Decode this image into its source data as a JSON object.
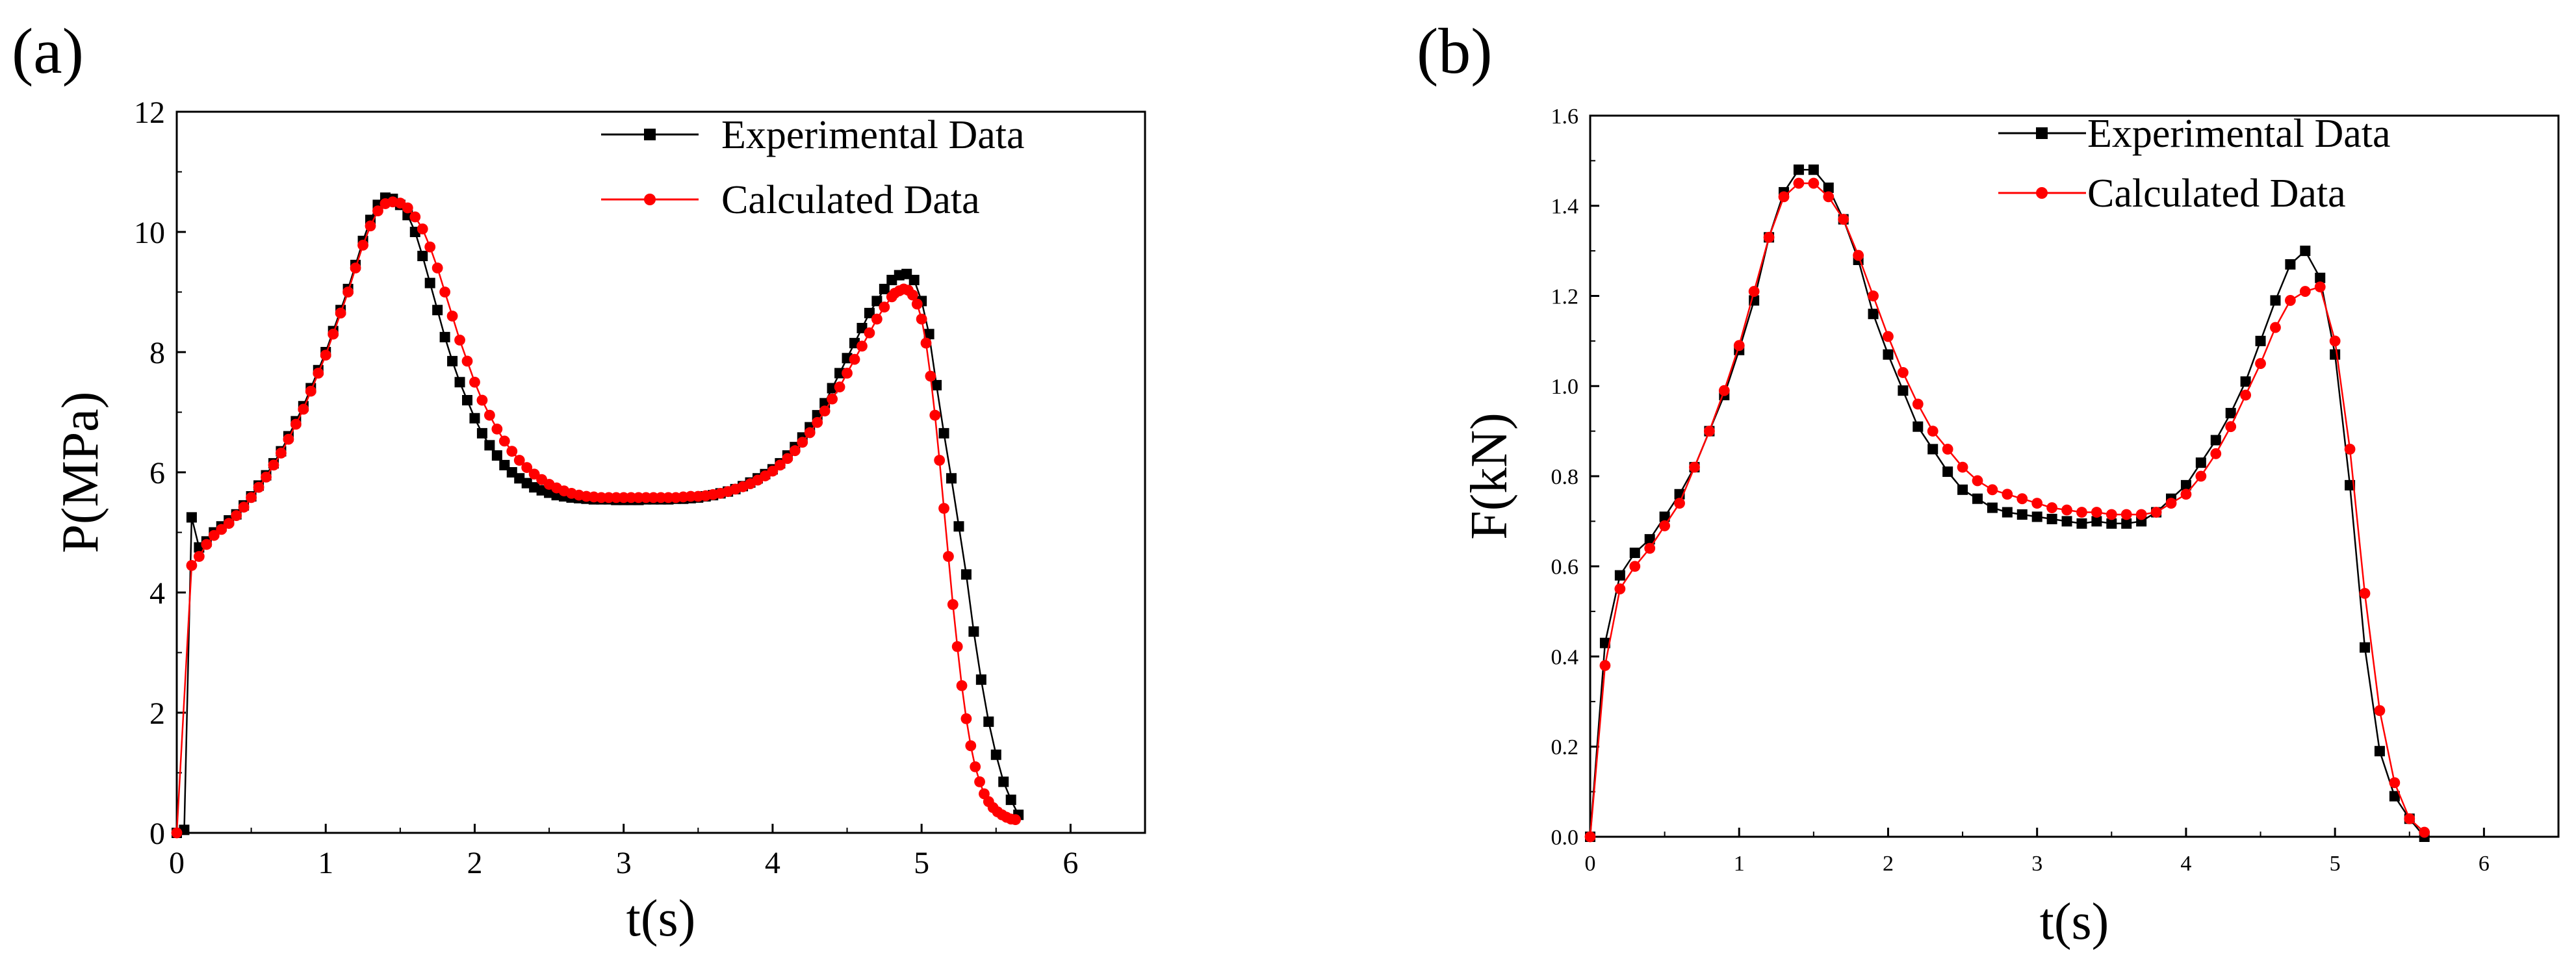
{
  "panels": [
    {
      "label": "(a)",
      "legend": [
        "Experimental Data",
        "Calculated Data"
      ]
    },
    {
      "label": "(b)",
      "legend": [
        "Experimental Data",
        "Calculated Data"
      ]
    }
  ],
  "colors": {
    "experimental": "#000000",
    "calculated": "#ff0000",
    "axis": "#000000",
    "background": "#ffffff"
  },
  "chart_data": [
    {
      "type": "line",
      "panel": "(a)",
      "title": "",
      "xlabel": "t(s)",
      "ylabel": "P(MPa)",
      "xlim": [
        0,
        6.5
      ],
      "ylim": [
        0,
        12
      ],
      "xticks": [
        0,
        1,
        2,
        3,
        4,
        5,
        6
      ],
      "yticks": [
        0,
        2,
        4,
        6,
        8,
        10,
        12
      ],
      "ytick_labels": [
        "0",
        "2",
        "4",
        "6",
        "8",
        "10",
        "12"
      ],
      "legend_position": "top-right",
      "series": [
        {
          "name": "Experimental Data",
          "marker": "square",
          "x": [
            0,
            0.05,
            0.1,
            0.15,
            0.2,
            0.25,
            0.3,
            0.35,
            0.4,
            0.45,
            0.5,
            0.55,
            0.6,
            0.65,
            0.7,
            0.75,
            0.8,
            0.85,
            0.9,
            0.95,
            1.0,
            1.05,
            1.1,
            1.15,
            1.2,
            1.25,
            1.3,
            1.35,
            1.4,
            1.45,
            1.5,
            1.55,
            1.6,
            1.65,
            1.7,
            1.75,
            1.8,
            1.85,
            1.9,
            1.95,
            2.0,
            2.05,
            2.1,
            2.15,
            2.2,
            2.25,
            2.3,
            2.35,
            2.4,
            2.45,
            2.5,
            2.55,
            2.6,
            2.65,
            2.7,
            2.75,
            2.8,
            2.85,
            2.9,
            2.95,
            3.0,
            3.05,
            3.1,
            3.15,
            3.2,
            3.25,
            3.3,
            3.35,
            3.4,
            3.45,
            3.5,
            3.55,
            3.6,
            3.65,
            3.7,
            3.75,
            3.8,
            3.85,
            3.9,
            3.95,
            4.0,
            4.05,
            4.1,
            4.15,
            4.2,
            4.25,
            4.3,
            4.35,
            4.4,
            4.45,
            4.5,
            4.55,
            4.6,
            4.65,
            4.7,
            4.75,
            4.8,
            4.85,
            4.9,
            4.95,
            5.0,
            5.05,
            5.1,
            5.15,
            5.2,
            5.25,
            5.3,
            5.35,
            5.4,
            5.45,
            5.5,
            5.55,
            5.6,
            5.65
          ],
          "y": [
            0.0,
            0.05,
            5.25,
            4.75,
            4.85,
            5.0,
            5.1,
            5.2,
            5.3,
            5.45,
            5.6,
            5.78,
            5.95,
            6.15,
            6.35,
            6.6,
            6.85,
            7.1,
            7.4,
            7.7,
            8.0,
            8.35,
            8.7,
            9.05,
            9.45,
            9.85,
            10.2,
            10.45,
            10.57,
            10.55,
            10.45,
            10.28,
            10.0,
            9.6,
            9.15,
            8.7,
            8.25,
            7.85,
            7.5,
            7.2,
            6.9,
            6.65,
            6.45,
            6.28,
            6.12,
            6.0,
            5.9,
            5.82,
            5.75,
            5.7,
            5.66,
            5.62,
            5.6,
            5.58,
            5.57,
            5.56,
            5.55,
            5.55,
            5.55,
            5.54,
            5.54,
            5.54,
            5.54,
            5.55,
            5.55,
            5.55,
            5.55,
            5.56,
            5.56,
            5.57,
            5.58,
            5.6,
            5.62,
            5.65,
            5.68,
            5.72,
            5.77,
            5.83,
            5.9,
            5.97,
            6.05,
            6.15,
            6.28,
            6.42,
            6.58,
            6.75,
            6.95,
            7.15,
            7.4,
            7.65,
            7.9,
            8.15,
            8.4,
            8.65,
            8.85,
            9.05,
            9.2,
            9.28,
            9.3,
            9.2,
            8.85,
            8.3,
            7.45,
            6.65,
            5.9,
            5.1,
            4.3,
            3.35,
            2.55,
            1.85,
            1.3,
            0.85,
            0.55,
            0.3
          ],
          "color": "#000000"
        },
        {
          "name": "Calculated Data",
          "marker": "circle",
          "x": [
            0,
            0.1,
            0.15,
            0.2,
            0.25,
            0.3,
            0.35,
            0.4,
            0.45,
            0.5,
            0.55,
            0.6,
            0.65,
            0.7,
            0.75,
            0.8,
            0.85,
            0.9,
            0.95,
            1.0,
            1.05,
            1.1,
            1.15,
            1.2,
            1.25,
            1.3,
            1.35,
            1.4,
            1.45,
            1.5,
            1.55,
            1.6,
            1.65,
            1.7,
            1.75,
            1.8,
            1.85,
            1.9,
            1.95,
            2.0,
            2.05,
            2.1,
            2.15,
            2.2,
            2.25,
            2.3,
            2.35,
            2.4,
            2.45,
            2.5,
            2.55,
            2.6,
            2.65,
            2.7,
            2.75,
            2.8,
            2.85,
            2.9,
            2.95,
            3.0,
            3.05,
            3.1,
            3.15,
            3.2,
            3.25,
            3.3,
            3.35,
            3.4,
            3.45,
            3.5,
            3.55,
            3.6,
            3.65,
            3.7,
            3.75,
            3.8,
            3.85,
            3.9,
            3.95,
            4.0,
            4.05,
            4.1,
            4.15,
            4.2,
            4.25,
            4.3,
            4.35,
            4.4,
            4.45,
            4.5,
            4.55,
            4.6,
            4.65,
            4.7,
            4.75,
            4.8,
            4.82,
            4.85,
            4.88,
            4.91,
            4.94,
            4.97,
            5.0,
            5.03,
            5.06,
            5.09,
            5.12,
            5.15,
            5.18,
            5.21,
            5.24,
            5.27,
            5.3,
            5.33,
            5.36,
            5.39,
            5.42,
            5.45,
            5.48,
            5.51,
            5.54,
            5.57,
            5.6,
            5.63
          ],
          "y": [
            0.0,
            4.45,
            4.6,
            4.8,
            4.95,
            5.05,
            5.15,
            5.28,
            5.42,
            5.58,
            5.75,
            5.92,
            6.12,
            6.32,
            6.55,
            6.8,
            7.05,
            7.35,
            7.65,
            7.95,
            8.3,
            8.65,
            9.0,
            9.4,
            9.78,
            10.1,
            10.35,
            10.47,
            10.5,
            10.48,
            10.4,
            10.25,
            10.05,
            9.75,
            9.4,
            9.0,
            8.6,
            8.2,
            7.85,
            7.5,
            7.2,
            6.95,
            6.72,
            6.52,
            6.35,
            6.2,
            6.08,
            5.97,
            5.88,
            5.8,
            5.74,
            5.69,
            5.65,
            5.62,
            5.6,
            5.59,
            5.58,
            5.58,
            5.58,
            5.58,
            5.58,
            5.58,
            5.58,
            5.58,
            5.58,
            5.58,
            5.58,
            5.59,
            5.6,
            5.6,
            5.61,
            5.63,
            5.65,
            5.68,
            5.72,
            5.76,
            5.81,
            5.87,
            5.94,
            6.02,
            6.12,
            6.23,
            6.36,
            6.5,
            6.66,
            6.83,
            7.02,
            7.22,
            7.42,
            7.65,
            7.88,
            8.1,
            8.32,
            8.55,
            8.75,
            8.92,
            8.98,
            9.02,
            9.05,
            9.03,
            8.95,
            8.8,
            8.55,
            8.15,
            7.6,
            6.95,
            6.2,
            5.4,
            4.6,
            3.8,
            3.1,
            2.45,
            1.9,
            1.45,
            1.1,
            0.85,
            0.65,
            0.52,
            0.42,
            0.35,
            0.3,
            0.26,
            0.23,
            0.22
          ],
          "color": "#ff0000"
        }
      ]
    },
    {
      "type": "line",
      "panel": "(b)",
      "title": "",
      "xlabel": "t(s)",
      "ylabel": "F(kN)",
      "xlim": [
        0,
        6.5
      ],
      "ylim": [
        0,
        1.6
      ],
      "xticks": [
        0,
        1,
        2,
        3,
        4,
        5,
        6
      ],
      "yticks": [
        0,
        0.2,
        0.4,
        0.6,
        0.8,
        1.0,
        1.2,
        1.4,
        1.6
      ],
      "ytick_labels": [
        "0.0",
        "0.2",
        "0.4",
        "0.6",
        "0.8",
        "1.0",
        "1.2",
        "1.4",
        "1.6"
      ],
      "legend_position": "top-right",
      "series": [
        {
          "name": "Experimental Data",
          "marker": "square",
          "x": [
            0,
            0.1,
            0.2,
            0.3,
            0.4,
            0.5,
            0.6,
            0.7,
            0.8,
            0.9,
            1.0,
            1.1,
            1.2,
            1.3,
            1.4,
            1.5,
            1.6,
            1.7,
            1.8,
            1.9,
            2.0,
            2.1,
            2.2,
            2.3,
            2.4,
            2.5,
            2.6,
            2.7,
            2.8,
            2.9,
            3.0,
            3.1,
            3.2,
            3.3,
            3.4,
            3.5,
            3.6,
            3.7,
            3.8,
            3.9,
            4.0,
            4.1,
            4.2,
            4.3,
            4.4,
            4.5,
            4.6,
            4.7,
            4.8,
            4.9,
            5.0,
            5.1,
            5.2,
            5.3,
            5.4,
            5.5,
            5.6
          ],
          "y": [
            0.0,
            0.43,
            0.58,
            0.63,
            0.66,
            0.71,
            0.76,
            0.82,
            0.9,
            0.98,
            1.08,
            1.19,
            1.33,
            1.43,
            1.48,
            1.48,
            1.44,
            1.37,
            1.28,
            1.16,
            1.07,
            0.99,
            0.91,
            0.86,
            0.81,
            0.77,
            0.75,
            0.73,
            0.72,
            0.715,
            0.71,
            0.705,
            0.7,
            0.695,
            0.7,
            0.695,
            0.695,
            0.7,
            0.72,
            0.75,
            0.78,
            0.83,
            0.88,
            0.94,
            1.01,
            1.1,
            1.19,
            1.27,
            1.3,
            1.24,
            1.07,
            0.78,
            0.42,
            0.19,
            0.09,
            0.04,
            0.0
          ],
          "color": "#000000"
        },
        {
          "name": "Calculated Data",
          "marker": "circle",
          "x": [
            0,
            0.1,
            0.2,
            0.3,
            0.4,
            0.5,
            0.6,
            0.7,
            0.8,
            0.9,
            1.0,
            1.1,
            1.2,
            1.3,
            1.4,
            1.5,
            1.6,
            1.7,
            1.8,
            1.9,
            2.0,
            2.1,
            2.2,
            2.3,
            2.4,
            2.5,
            2.6,
            2.7,
            2.8,
            2.9,
            3.0,
            3.1,
            3.2,
            3.3,
            3.4,
            3.5,
            3.6,
            3.7,
            3.8,
            3.9,
            4.0,
            4.1,
            4.2,
            4.3,
            4.4,
            4.5,
            4.6,
            4.7,
            4.8,
            4.9,
            5.0,
            5.1,
            5.2,
            5.3,
            5.4,
            5.5,
            5.6
          ],
          "y": [
            0.0,
            0.38,
            0.55,
            0.6,
            0.64,
            0.69,
            0.74,
            0.82,
            0.9,
            0.99,
            1.09,
            1.21,
            1.33,
            1.42,
            1.45,
            1.45,
            1.42,
            1.37,
            1.29,
            1.2,
            1.11,
            1.03,
            0.96,
            0.9,
            0.86,
            0.82,
            0.79,
            0.77,
            0.76,
            0.75,
            0.74,
            0.73,
            0.725,
            0.72,
            0.72,
            0.715,
            0.715,
            0.715,
            0.72,
            0.74,
            0.76,
            0.8,
            0.85,
            0.91,
            0.98,
            1.05,
            1.13,
            1.19,
            1.21,
            1.22,
            1.1,
            0.86,
            0.54,
            0.28,
            0.12,
            0.04,
            0.01
          ],
          "color": "#ff0000"
        }
      ]
    }
  ]
}
